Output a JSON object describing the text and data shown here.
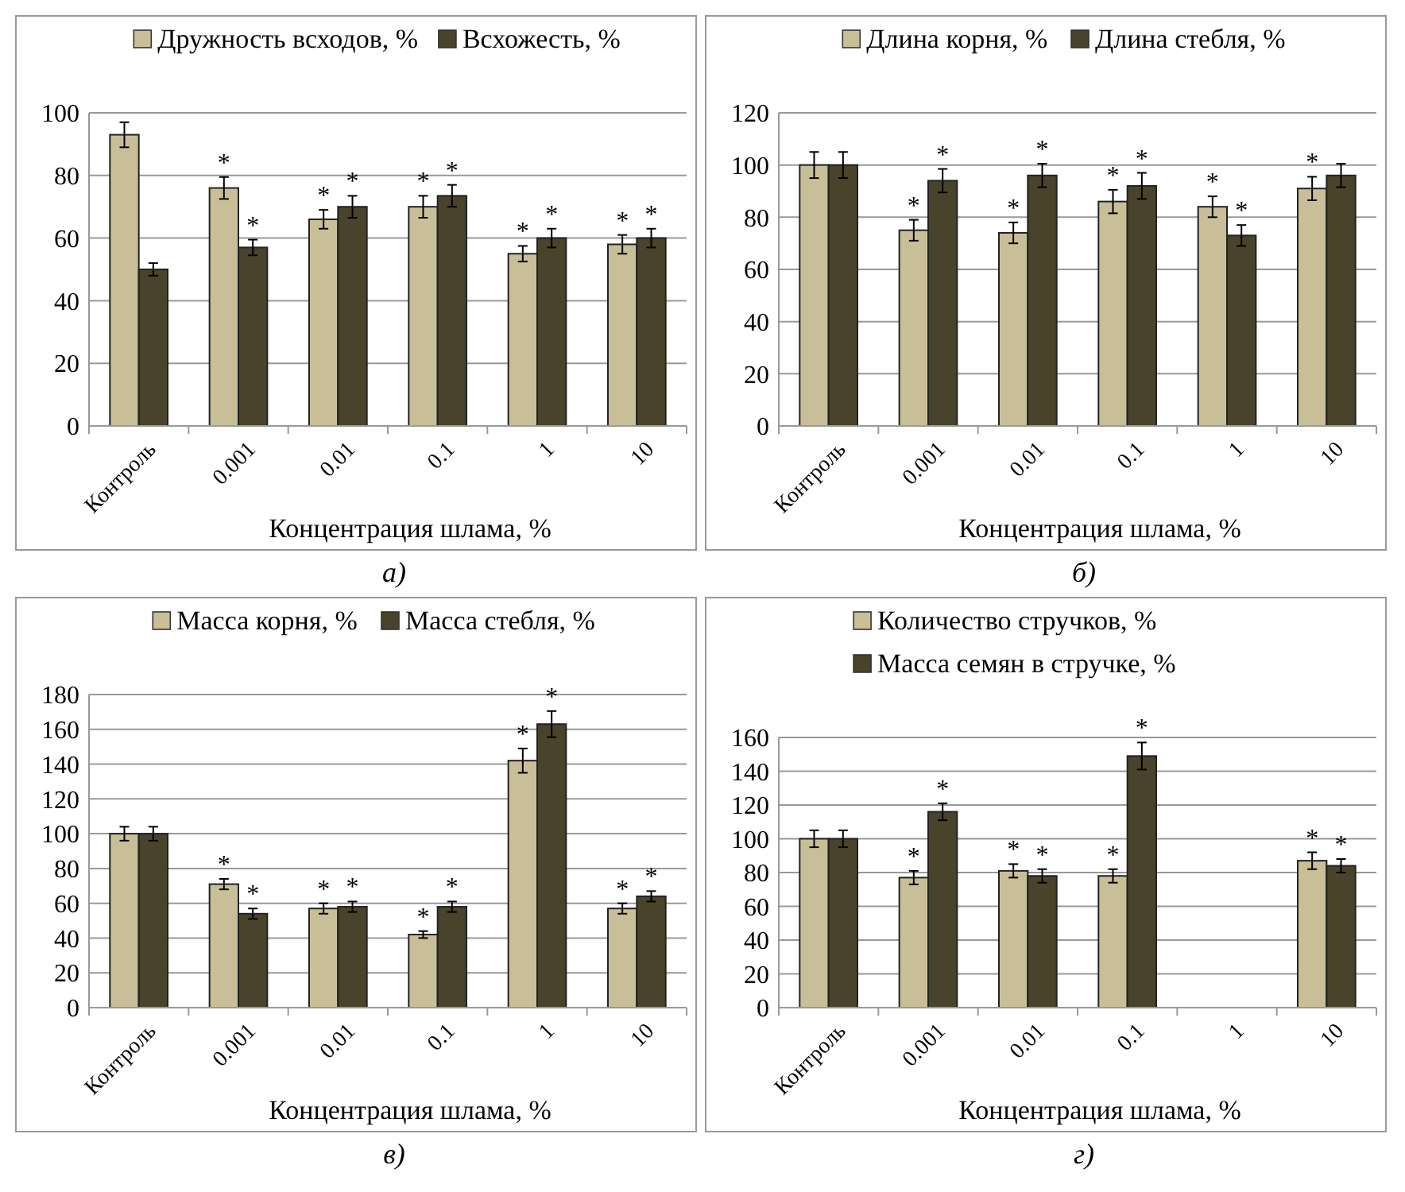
{
  "chart_data": [
    {
      "type": "bar",
      "xlabel": "Концентрация шлама, %",
      "annotations": [
        "а)"
      ],
      "categories": [
        "Контроль",
        "0.001",
        "0.01",
        "0.1",
        "1",
        "10"
      ],
      "ylim": [
        0,
        100
      ],
      "yticks": [
        0,
        20,
        40,
        60,
        80,
        100
      ],
      "grid": "y",
      "legend": "top",
      "series": [
        {
          "name": "Дружность всходов, %",
          "color": "#c8bf99",
          "values": [
            93,
            76,
            66,
            70,
            55,
            58
          ],
          "errors": [
            4,
            3.5,
            3,
            3.5,
            2.5,
            3
          ],
          "value_labels": [
            null,
            "*",
            "*",
            "*",
            "*",
            "*"
          ]
        },
        {
          "name": "Всхожесть, %",
          "color": "#4a432b",
          "values": [
            50,
            57,
            70,
            73.5,
            60,
            60
          ],
          "errors": [
            2,
            2.5,
            3.5,
            3.5,
            3,
            3
          ],
          "value_labels": [
            null,
            "*",
            "*",
            "*",
            "*",
            "*"
          ]
        }
      ]
    },
    {
      "type": "bar",
      "xlabel": "Концентрация шлама, %",
      "annotations": [
        "б)"
      ],
      "categories": [
        "Контроль",
        "0.001",
        "0.01",
        "0.1",
        "1",
        "10"
      ],
      "ylim": [
        0,
        120
      ],
      "yticks": [
        0,
        20,
        40,
        60,
        80,
        100,
        120
      ],
      "grid": "y",
      "legend": "top",
      "series": [
        {
          "name": "Длина корня, %",
          "color": "#c8bf99",
          "values": [
            100,
            75,
            74,
            86,
            84,
            91
          ],
          "errors": [
            5,
            4,
            4,
            4.5,
            4,
            4.5
          ],
          "value_labels": [
            null,
            "*",
            "*",
            "*",
            "*",
            "*"
          ]
        },
        {
          "name": "Длина стебля, %",
          "color": "#4a432b",
          "values": [
            100,
            94,
            96,
            92,
            73,
            96
          ],
          "errors": [
            5,
            4.5,
            4.5,
            5,
            4,
            4.5
          ],
          "value_labels": [
            null,
            "*",
            "*",
            "*",
            "*",
            null
          ]
        }
      ]
    },
    {
      "type": "bar",
      "xlabel": "Концентрация шлама, %",
      "annotations": [
        "в)"
      ],
      "categories": [
        "Контроль",
        "0.001",
        "0.01",
        "0.1",
        "1",
        "10"
      ],
      "ylim": [
        0,
        180
      ],
      "yticks": [
        0,
        20,
        40,
        60,
        80,
        100,
        120,
        140,
        160,
        180
      ],
      "grid": "y",
      "legend": "top",
      "series": [
        {
          "name": "Масса корня, %",
          "color": "#c8bf99",
          "values": [
            100,
            71,
            57,
            42,
            142,
            57
          ],
          "errors": [
            4,
            3,
            3,
            2,
            7,
            3
          ],
          "value_labels": [
            null,
            "*",
            "*",
            "*",
            "*",
            "*"
          ]
        },
        {
          "name": "Масса стебля, %",
          "color": "#4a432b",
          "values": [
            100,
            54,
            58,
            58,
            163,
            64
          ],
          "errors": [
            4,
            3,
            3,
            3,
            7.5,
            3
          ],
          "value_labels": [
            null,
            "*",
            "*",
            "*",
            "*",
            "*"
          ]
        }
      ]
    },
    {
      "type": "bar",
      "xlabel": "Концентрация шлама, %",
      "annotations": [
        "г)"
      ],
      "categories": [
        "Контроль",
        "0.001",
        "0.01",
        "0.1",
        "1",
        "10"
      ],
      "ylim": [
        0,
        160
      ],
      "yticks": [
        0,
        20,
        40,
        60,
        80,
        100,
        120,
        140,
        160
      ],
      "grid": "y",
      "legend": "top",
      "series": [
        {
          "name": "Количество стручков, %",
          "color": "#c8bf99",
          "values": [
            100,
            77,
            81,
            78,
            null,
            87
          ],
          "errors": [
            5,
            4,
            4,
            4,
            null,
            5
          ],
          "value_labels": [
            null,
            "*",
            "*",
            "*",
            null,
            "*"
          ]
        },
        {
          "name": "Масса семян в стручке, %",
          "color": "#4a432b",
          "values": [
            100,
            116,
            78,
            149,
            null,
            84
          ],
          "errors": [
            5,
            5,
            4,
            8,
            null,
            4
          ],
          "value_labels": [
            null,
            "*",
            "*",
            "*",
            null,
            "*"
          ]
        }
      ]
    }
  ]
}
